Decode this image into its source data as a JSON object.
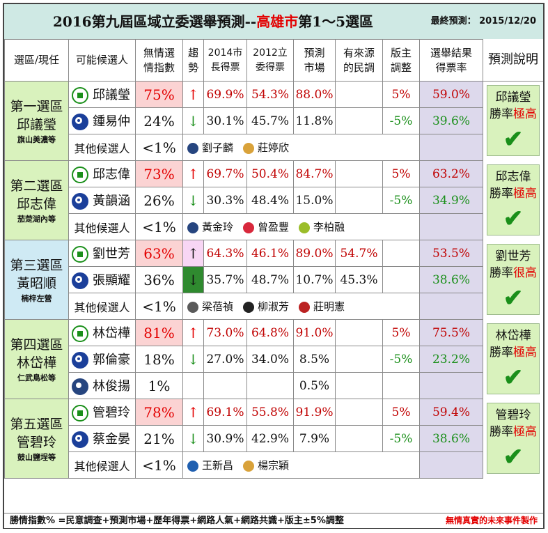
{
  "title": {
    "prefix": "2016第九屆區域立委選舉預測--",
    "highlight": "高雄市",
    "suffix": "第1～5選區",
    "date": "最終預測： 2015/12/20"
  },
  "headers": [
    "選區/現任",
    "可能候選人",
    "無情選\n情指數",
    "趨\n勢",
    "2014市\n長得票",
    "2012立\n委得票",
    "預測\n市場",
    "有來源\n的民調",
    "版主\n調整",
    "選舉結果\n得票率",
    "預測說明"
  ],
  "colors": {
    "dpp": "#1a8f1a",
    "kmt": "#1b3f9a",
    "highlight": "#e30000",
    "district_bg": "#d9f2bd",
    "district_bg_alt": "#cfeaf4",
    "index_bg": "#fbd3d3",
    "result_bg": "#ddd9ec"
  },
  "chart_data": {
    "type": "table",
    "columns": [
      "選區/現任",
      "可能候選人",
      "無情選情指數",
      "趨勢",
      "2014市長得票",
      "2012立委得票",
      "預測市場",
      "有來源的民調",
      "版主調整",
      "選舉結果得票率",
      "預測說明"
    ],
    "districts": [
      {
        "name": "第一選區",
        "incumbent": "邱議瑩",
        "area": "旗山美濃等",
        "candidates": [
          {
            "name": "邱議瑩",
            "party_icon": "dpp-icon",
            "index": "75%",
            "trend": "↑",
            "mayor2014": "69.9%",
            "leg2012": "54.3%",
            "market": "88.0%",
            "poll": "",
            "adjust": "5%",
            "result": "59.0%"
          },
          {
            "name": "鍾易仲",
            "party_icon": "kmt-icon",
            "index": "24%",
            "trend": "↓",
            "mayor2014": "30.1%",
            "leg2012": "45.7%",
            "market": "11.8%",
            "poll": "",
            "adjust": "-5%",
            "result": "39.6%"
          }
        ],
        "others_label": "其他候選人",
        "others_index": "<1%",
        "others": [
          {
            "name": "劉子麟",
            "icon": "mkt-icon"
          },
          {
            "name": "莊婷欣",
            "icon": "bird-icon"
          }
        ],
        "prediction": {
          "line1": "邱議瑩",
          "line2_prefix": "勝率",
          "line2_highlight": "極高"
        }
      },
      {
        "name": "第二選區",
        "incumbent": "邱志偉",
        "area": "茄萣湖內等",
        "candidates": [
          {
            "name": "邱志偉",
            "party_icon": "dpp-icon",
            "index": "73%",
            "trend": "↑",
            "mayor2014": "69.7%",
            "leg2012": "50.4%",
            "market": "84.7%",
            "poll": "",
            "adjust": "5%",
            "result": "63.2%"
          },
          {
            "name": "黃韻涵",
            "party_icon": "kmt-icon",
            "index": "26%",
            "trend": "↓",
            "mayor2014": "30.3%",
            "leg2012": "48.4%",
            "market": "15.0%",
            "poll": "",
            "adjust": "-5%",
            "result": "34.9%"
          }
        ],
        "others_label": "其他候選人",
        "others_index": "<1%",
        "others": [
          {
            "name": "黃金玲",
            "icon": "mkt-icon"
          },
          {
            "name": "曾盈豐",
            "icon": "red-circle-icon"
          },
          {
            "name": "李柏融",
            "icon": "peace-icon"
          }
        ],
        "prediction": {
          "line1": "邱志偉",
          "line2_prefix": "勝率",
          "line2_highlight": "極高"
        }
      },
      {
        "name": "第三選區",
        "incumbent": "黃昭順",
        "area": "楠梓左營",
        "candidates": [
          {
            "name": "劉世芳",
            "party_icon": "dpp-icon",
            "index": "63%",
            "trend": "↑",
            "mayor2014": "64.3%",
            "leg2012": "46.1%",
            "market": "89.0%",
            "poll": "54.7%",
            "adjust": "",
            "result": "53.5%"
          },
          {
            "name": "張顯耀",
            "party_icon": "kmt-icon",
            "index": "36%",
            "trend": "↓",
            "mayor2014": "35.7%",
            "leg2012": "48.7%",
            "market": "10.7%",
            "poll": "45.3%",
            "adjust": "",
            "result": "38.6%"
          }
        ],
        "others_label": "其他候選人",
        "others_index": "<1%",
        "others": [
          {
            "name": "梁蓓禎",
            "icon": "green-party-icon"
          },
          {
            "name": "柳淑芳",
            "icon": "dark-circle-icon"
          },
          {
            "name": "莊明憲",
            "icon": "red-seal-icon"
          }
        ],
        "prediction": {
          "line1": "劉世芳",
          "line2_prefix": "勝率",
          "line2_highlight": "很高"
        }
      },
      {
        "name": "第四選區",
        "incumbent": "林岱樺",
        "area": "仁武鳥松等",
        "candidates": [
          {
            "name": "林岱樺",
            "party_icon": "dpp-icon",
            "index": "81%",
            "trend": "↑",
            "mayor2014": "73.0%",
            "leg2012": "64.8%",
            "market": "91.0%",
            "poll": "",
            "adjust": "5%",
            "result": "75.5%"
          },
          {
            "name": "郭倫豪",
            "party_icon": "kmt-icon",
            "index": "18%",
            "trend": "↓",
            "mayor2014": "27.0%",
            "leg2012": "34.0%",
            "market": "8.5%",
            "poll": "",
            "adjust": "-5%",
            "result": "23.2%"
          },
          {
            "name": "林俊揚",
            "party_icon": "mkt-icon",
            "index": "1%",
            "trend": "",
            "mayor2014": "",
            "leg2012": "",
            "market": "0.5%",
            "poll": "",
            "adjust": "",
            "result": ""
          }
        ],
        "others_label": "",
        "others_index": "",
        "others": [],
        "prediction": {
          "line1": "林岱樺",
          "line2_prefix": "勝率",
          "line2_highlight": "極高"
        }
      },
      {
        "name": "第五選區",
        "incumbent": "管碧玲",
        "area": "鼓山鹽埕等",
        "candidates": [
          {
            "name": "管碧玲",
            "party_icon": "dpp-icon",
            "index": "78%",
            "trend": "↑",
            "mayor2014": "69.1%",
            "leg2012": "55.8%",
            "market": "91.9%",
            "poll": "",
            "adjust": "5%",
            "result": "59.4%"
          },
          {
            "name": "蔡金晏",
            "party_icon": "kmt-icon",
            "index": "21%",
            "trend": "↓",
            "mayor2014": "30.9%",
            "leg2012": "42.9%",
            "market": "7.9%",
            "poll": "",
            "adjust": "-5%",
            "result": "38.6%"
          }
        ],
        "others_label": "其他候選人",
        "others_index": "<1%",
        "others": [
          {
            "name": "王新昌",
            "icon": "swirl-icon"
          },
          {
            "name": "楊宗穎",
            "icon": "bird-icon"
          }
        ],
        "prediction": {
          "line1": "管碧玲",
          "line2_prefix": "勝率",
          "line2_highlight": "極高"
        }
      }
    ]
  },
  "footer": {
    "formula": "勝情指數% =民意調查+預測市場+歷年得票+網路人氣+網路共識+版主±5%調整",
    "credit": "無情真實的未來事件製作"
  }
}
